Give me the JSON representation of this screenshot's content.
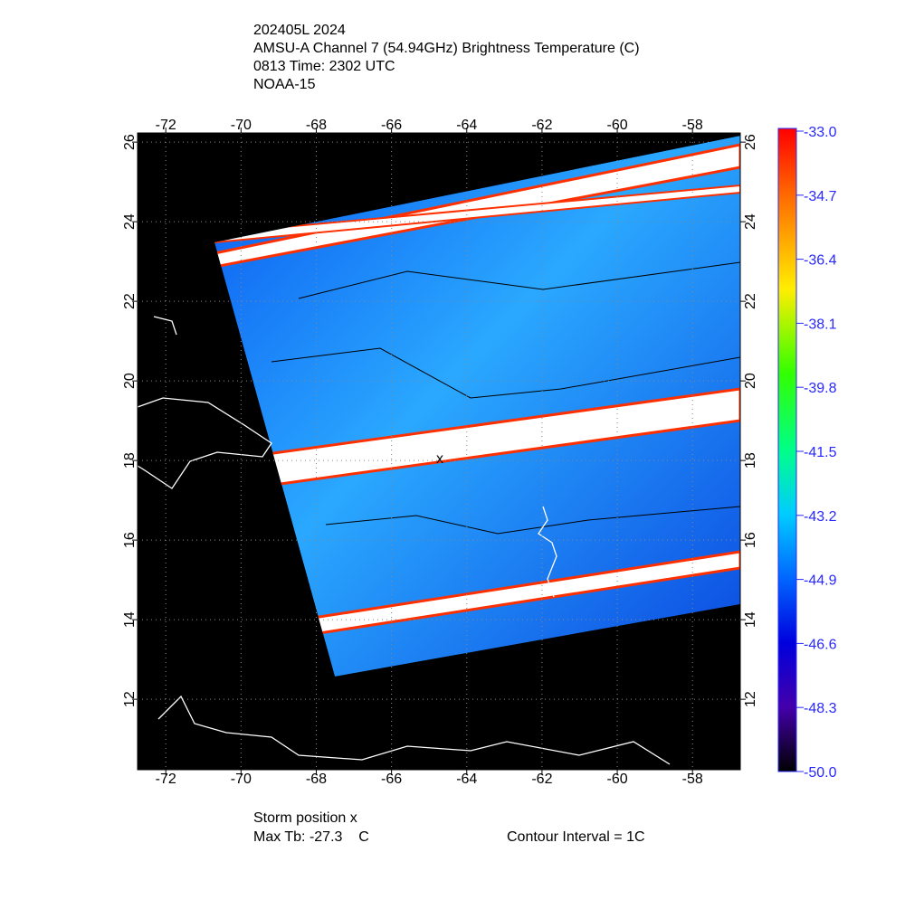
{
  "header": {
    "lines": [
      "202405L 2024",
      "AMSU-A Channel 7 (54.94GHz) Brightness Temperature (C)",
      "0813 Time: 2302 UTC",
      "NOAA-15"
    ]
  },
  "map": {
    "lon_range": [
      -72.75,
      -56.73
    ],
    "lat_range": [
      10.23,
      26.23
    ],
    "lon_ticks": [
      -72,
      -70,
      -68,
      -66,
      -64,
      -62,
      -60,
      -58
    ],
    "lat_ticks": [
      12,
      14,
      16,
      18,
      20,
      22,
      24,
      26
    ],
    "storm_marker": "x"
  },
  "colorbar": {
    "range": [
      -50,
      -33
    ],
    "ticks": [
      {
        "value": -33,
        "label": "-33.0"
      },
      {
        "value": -34.7,
        "label": "-34.7"
      },
      {
        "value": -36.4,
        "label": "-36.4"
      },
      {
        "value": -38.1,
        "label": "-38.1"
      },
      {
        "value": -39.8,
        "label": "-39.8"
      },
      {
        "value": -41.5,
        "label": "-41.5"
      },
      {
        "value": -43.2,
        "label": "-43.2"
      },
      {
        "value": -44.9,
        "label": "-44.9"
      },
      {
        "value": -46.6,
        "label": "-46.6"
      },
      {
        "value": -48.3,
        "label": "-48.3"
      },
      {
        "value": -50,
        "label": "-50.0"
      }
    ]
  },
  "footer": {
    "storm_position": "Storm position x",
    "max_tb": "Max Tb: -27.3    C",
    "contour_interval": "Contour Interval = 1C"
  }
}
